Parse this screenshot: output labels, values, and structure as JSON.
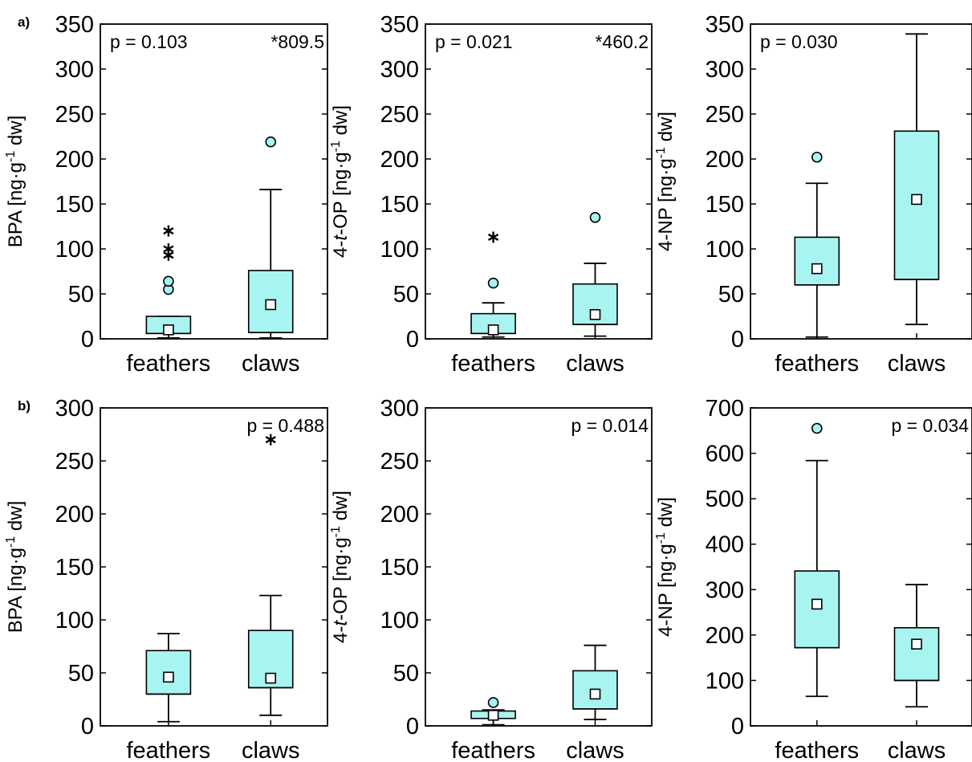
{
  "colors": {
    "box_fill": "#a8f4f0",
    "outlier_fill": "#a8f4f0",
    "line": "#000000"
  },
  "chart_data": [
    {
      "type": "box",
      "panel_label": "a)",
      "ylabel": {
        "pre": "BPA [ng·g",
        "sup": "-1",
        "post": " dw]"
      },
      "ylim": [
        0,
        350
      ],
      "yticks": [
        0,
        50,
        100,
        150,
        200,
        250,
        300,
        350
      ],
      "categories": [
        "feathers",
        "claws"
      ],
      "annotations": [
        {
          "text": "p = 0.103",
          "pos": "top-left"
        },
        {
          "text": "*809.5",
          "pos": "top-right"
        }
      ],
      "boxes": [
        {
          "category": "feathers",
          "whisker_low": 1,
          "q1": 6,
          "median": 6,
          "q3": 25,
          "whisker_high": 25,
          "mean": 10,
          "outliers": [
            {
              "value": 55,
              "marker": "circle"
            },
            {
              "value": 64,
              "marker": "circle"
            },
            {
              "value": 93,
              "marker": "star"
            },
            {
              "value": 100,
              "marker": "star"
            },
            {
              "value": 120,
              "marker": "star"
            }
          ]
        },
        {
          "category": "claws",
          "whisker_low": 1,
          "q1": 7,
          "median": 7,
          "q3": 76,
          "whisker_high": 166,
          "mean": 38,
          "outliers": [
            {
              "value": 219,
              "marker": "circle"
            }
          ]
        }
      ]
    },
    {
      "type": "box",
      "panel_label": "",
      "ylabel": {
        "pre": "4-",
        "ital": "t",
        "mid": "-OP [ng·g",
        "sup": "-1",
        "post": " dw]"
      },
      "ylim": [
        0,
        350
      ],
      "yticks": [
        0,
        50,
        100,
        150,
        200,
        250,
        300,
        350
      ],
      "categories": [
        "feathers",
        "claws"
      ],
      "annotations": [
        {
          "text": "p = 0.021",
          "pos": "top-left"
        },
        {
          "text": "*460.2",
          "pos": "top-right"
        }
      ],
      "boxes": [
        {
          "category": "feathers",
          "whisker_low": 2,
          "q1": 6,
          "median": 6,
          "q3": 28,
          "whisker_high": 40,
          "mean": 10,
          "outliers": [
            {
              "value": 62,
              "marker": "circle"
            },
            {
              "value": 113,
              "marker": "star"
            }
          ]
        },
        {
          "category": "claws",
          "whisker_low": 3,
          "q1": 16,
          "median": 16,
          "q3": 61,
          "whisker_high": 84,
          "mean": 27,
          "outliers": [
            {
              "value": 135,
              "marker": "circle"
            }
          ]
        }
      ]
    },
    {
      "type": "box",
      "panel_label": "",
      "ylabel": {
        "pre": "4-NP [ng·g",
        "sup": "-1",
        "post": " dw]"
      },
      "ylim": [
        0,
        350
      ],
      "yticks": [
        0,
        50,
        100,
        150,
        200,
        250,
        300,
        350
      ],
      "categories": [
        "feathers",
        "claws"
      ],
      "annotations": [
        {
          "text": "p = 0.030",
          "pos": "top-left"
        }
      ],
      "boxes": [
        {
          "category": "feathers",
          "whisker_low": 2,
          "q1": 60,
          "median": 60,
          "q3": 113,
          "whisker_high": 173,
          "mean": 78,
          "outliers": [
            {
              "value": 202,
              "marker": "circle"
            }
          ]
        },
        {
          "category": "claws",
          "whisker_low": 16,
          "q1": 66,
          "median": 66,
          "q3": 231,
          "whisker_high": 339,
          "mean": 155,
          "outliers": []
        }
      ]
    },
    {
      "type": "box",
      "panel_label": "b)",
      "ylabel": {
        "pre": "BPA [ng·g",
        "sup": "-1",
        "post": " dw]"
      },
      "ylim": [
        0,
        300
      ],
      "yticks": [
        0,
        50,
        100,
        150,
        200,
        250,
        300
      ],
      "categories": [
        "feathers",
        "claws"
      ],
      "annotations": [
        {
          "text": "p = 0.488",
          "pos": "top-right"
        }
      ],
      "boxes": [
        {
          "category": "feathers",
          "whisker_low": 4,
          "q1": 30,
          "median": 30,
          "q3": 71,
          "whisker_high": 87,
          "mean": 46,
          "outliers": []
        },
        {
          "category": "claws",
          "whisker_low": 10,
          "q1": 36,
          "median": 36,
          "q3": 90,
          "whisker_high": 123,
          "mean": 45,
          "outliers": [
            {
              "value": 270,
              "marker": "star"
            }
          ]
        }
      ]
    },
    {
      "type": "box",
      "panel_label": "",
      "ylabel": {
        "pre": "4-",
        "ital": "t",
        "mid": "-OP [ng·g",
        "sup": "-1",
        "post": " dw]"
      },
      "ylim": [
        0,
        300
      ],
      "yticks": [
        0,
        50,
        100,
        150,
        200,
        250,
        300
      ],
      "categories": [
        "feathers",
        "claws"
      ],
      "annotations": [
        {
          "text": "p = 0.014",
          "pos": "top-right"
        }
      ],
      "boxes": [
        {
          "category": "feathers",
          "whisker_low": 1,
          "q1": 7,
          "median": 7,
          "q3": 14,
          "whisker_high": 15,
          "mean": 10,
          "outliers": [
            {
              "value": 22,
              "marker": "circle"
            }
          ]
        },
        {
          "category": "claws",
          "whisker_low": 6,
          "q1": 16,
          "median": 16,
          "q3": 52,
          "whisker_high": 76,
          "mean": 30,
          "outliers": []
        }
      ]
    },
    {
      "type": "box",
      "panel_label": "",
      "ylabel": {
        "pre": "4-NP [ng·g",
        "sup": "-1",
        "post": " dw]"
      },
      "ylim": [
        0,
        700
      ],
      "yticks": [
        0,
        100,
        200,
        300,
        400,
        500,
        600,
        700
      ],
      "categories": [
        "feathers",
        "claws"
      ],
      "annotations": [
        {
          "text": "p = 0.034",
          "pos": "top-right"
        }
      ],
      "boxes": [
        {
          "category": "feathers",
          "whisker_low": 65,
          "q1": 172,
          "median": 172,
          "q3": 341,
          "whisker_high": 584,
          "mean": 268,
          "outliers": [
            {
              "value": 655,
              "marker": "circle"
            }
          ]
        },
        {
          "category": "claws",
          "whisker_low": 42,
          "q1": 100,
          "median": 100,
          "q3": 216,
          "whisker_high": 311,
          "mean": 180,
          "outliers": []
        }
      ]
    }
  ]
}
